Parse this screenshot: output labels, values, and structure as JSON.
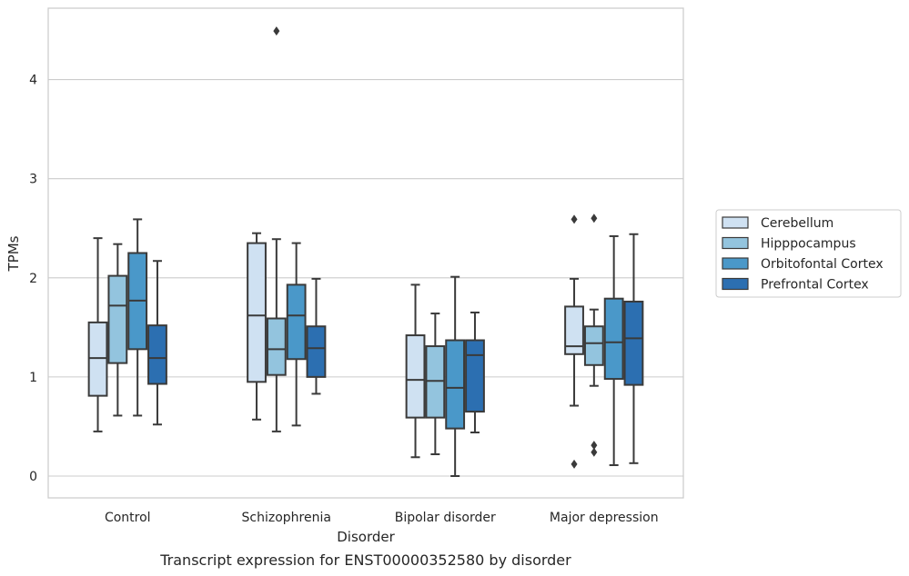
{
  "chart_data": {
    "type": "box",
    "title": "",
    "caption": "Transcript expression for ENST00000352580 by disorder",
    "xlabel": "Disorder",
    "ylabel": "TPMs",
    "ylim": [
      -0.22,
      4.72
    ],
    "yticks": [
      0,
      1,
      2,
      3,
      4
    ],
    "grid": "horizontal",
    "legend_position": "right",
    "categories": [
      "Control",
      "Schizophrenia",
      "Bipolar disorder",
      "Major depression"
    ],
    "series": [
      {
        "name": "Cerebellum",
        "color": "#cfe1f2",
        "boxes": [
          {
            "whisker_low": 0.45,
            "q1": 0.81,
            "median": 1.19,
            "q3": 1.55,
            "whisker_high": 2.4,
            "outliers": []
          },
          {
            "whisker_low": 0.57,
            "q1": 0.95,
            "median": 1.62,
            "q3": 2.35,
            "whisker_high": 2.45,
            "outliers": []
          },
          {
            "whisker_low": 0.19,
            "q1": 0.59,
            "median": 0.97,
            "q3": 1.42,
            "whisker_high": 1.93,
            "outliers": []
          },
          {
            "whisker_low": 0.71,
            "q1": 1.23,
            "median": 1.31,
            "q3": 1.71,
            "whisker_high": 1.99,
            "outliers": [
              2.59,
              0.12
            ]
          }
        ]
      },
      {
        "name": "Hipppocampus",
        "color": "#93c4de",
        "boxes": [
          {
            "whisker_low": 0.61,
            "q1": 1.14,
            "median": 1.72,
            "q3": 2.02,
            "whisker_high": 2.34,
            "outliers": []
          },
          {
            "whisker_low": 0.45,
            "q1": 1.02,
            "median": 1.28,
            "q3": 1.59,
            "whisker_high": 2.39,
            "outliers": [
              4.49
            ]
          },
          {
            "whisker_low": 0.22,
            "q1": 0.59,
            "median": 0.96,
            "q3": 1.31,
            "whisker_high": 1.64,
            "outliers": []
          },
          {
            "whisker_low": 0.91,
            "q1": 1.12,
            "median": 1.34,
            "q3": 1.51,
            "whisker_high": 1.68,
            "outliers": [
              2.6,
              0.31,
              0.24
            ]
          }
        ]
      },
      {
        "name": "Orbitofontal Cortex",
        "color": "#4a98c9",
        "boxes": [
          {
            "whisker_low": 0.61,
            "q1": 1.28,
            "median": 1.77,
            "q3": 2.25,
            "whisker_high": 2.59,
            "outliers": []
          },
          {
            "whisker_low": 0.51,
            "q1": 1.18,
            "median": 1.62,
            "q3": 1.93,
            "whisker_high": 2.35,
            "outliers": []
          },
          {
            "whisker_low": 0.0,
            "q1": 0.48,
            "median": 0.89,
            "q3": 1.37,
            "whisker_high": 2.01,
            "outliers": []
          },
          {
            "whisker_low": 0.11,
            "q1": 0.98,
            "median": 1.35,
            "q3": 1.79,
            "whisker_high": 2.42,
            "outliers": []
          }
        ]
      },
      {
        "name": "Prefrontal Cortex",
        "color": "#2c6fb1",
        "boxes": [
          {
            "whisker_low": 0.52,
            "q1": 0.93,
            "median": 1.19,
            "q3": 1.52,
            "whisker_high": 2.17,
            "outliers": []
          },
          {
            "whisker_low": 0.83,
            "q1": 1.0,
            "median": 1.29,
            "q3": 1.51,
            "whisker_high": 1.99,
            "outliers": []
          },
          {
            "whisker_low": 0.44,
            "q1": 0.65,
            "median": 1.22,
            "q3": 1.37,
            "whisker_high": 1.65,
            "outliers": []
          },
          {
            "whisker_low": 0.13,
            "q1": 0.92,
            "median": 1.39,
            "q3": 1.76,
            "whisker_high": 2.44,
            "outliers": []
          }
        ]
      }
    ]
  }
}
